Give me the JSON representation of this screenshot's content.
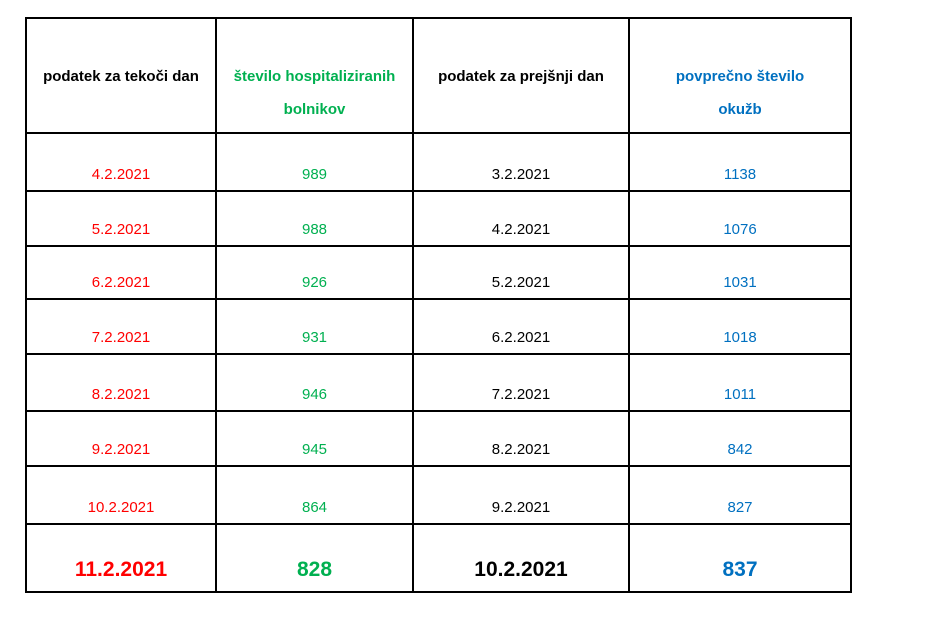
{
  "table": {
    "columns": [
      {
        "id": "current_date",
        "label": "podatek za tekoči dan",
        "lines": [
          "podatek za tekoči dan"
        ],
        "color": "#000000"
      },
      {
        "id": "hospitalized",
        "label": "število hospitaliziranih bolnikov",
        "lines": [
          "število hospitaliziranih",
          "bolnikov"
        ],
        "color": "#00B050"
      },
      {
        "id": "previous_date",
        "label": "podatek za prejšnji dan",
        "lines": [
          "podatek za prejšnji dan"
        ],
        "color": "#000000"
      },
      {
        "id": "avg_infections",
        "label": "povprečno število okužb",
        "lines": [
          "povprečno število",
          "okužb"
        ],
        "color": "#0070C0"
      }
    ],
    "cell_colors": {
      "current_date": "#FF0000",
      "hospitalized": "#00B050",
      "previous_date": "#000000",
      "avg_infections": "#0070C0"
    },
    "rows": [
      {
        "current_date": "4.2.2021",
        "hospitalized": "989",
        "previous_date": "3.2.2021",
        "avg_infections": "1138",
        "emphasized": false
      },
      {
        "current_date": "5.2.2021",
        "hospitalized": "988",
        "previous_date": "4.2.2021",
        "avg_infections": "1076",
        "emphasized": false
      },
      {
        "current_date": "6.2.2021",
        "hospitalized": "926",
        "previous_date": "5.2.2021",
        "avg_infections": "1031",
        "emphasized": false
      },
      {
        "current_date": "7.2.2021",
        "hospitalized": "931",
        "previous_date": "6.2.2021",
        "avg_infections": "1018",
        "emphasized": false
      },
      {
        "current_date": "8.2.2021",
        "hospitalized": "946",
        "previous_date": "7.2.2021",
        "avg_infections": "1011",
        "emphasized": false
      },
      {
        "current_date": "9.2.2021",
        "hospitalized": "945",
        "previous_date": "8.2.2021",
        "avg_infections": "842",
        "emphasized": false
      },
      {
        "current_date": "10.2.2021",
        "hospitalized": "864",
        "previous_date": "9.2.2021",
        "avg_infections": "827",
        "emphasized": false
      },
      {
        "current_date": "11.2.2021",
        "hospitalized": "828",
        "previous_date": "10.2.2021",
        "avg_infections": "837",
        "emphasized": true
      }
    ]
  }
}
